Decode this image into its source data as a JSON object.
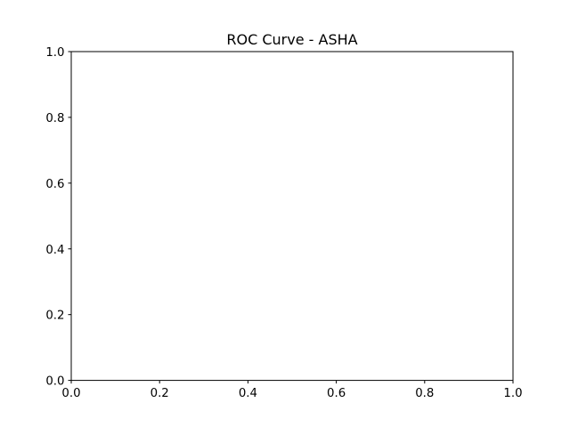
{
  "chart_data": {
    "type": "line",
    "title": "ROC Curve - ASHA",
    "xlabel": "",
    "ylabel": "",
    "xlim": [
      0,
      1
    ],
    "ylim": [
      0,
      1
    ],
    "xticks": [
      "0.0",
      "0.2",
      "0.4",
      "0.6",
      "0.8",
      "1.0"
    ],
    "yticks": [
      "0.0",
      "0.2",
      "0.4",
      "0.6",
      "0.8",
      "1.0"
    ],
    "grid": false,
    "series": []
  }
}
